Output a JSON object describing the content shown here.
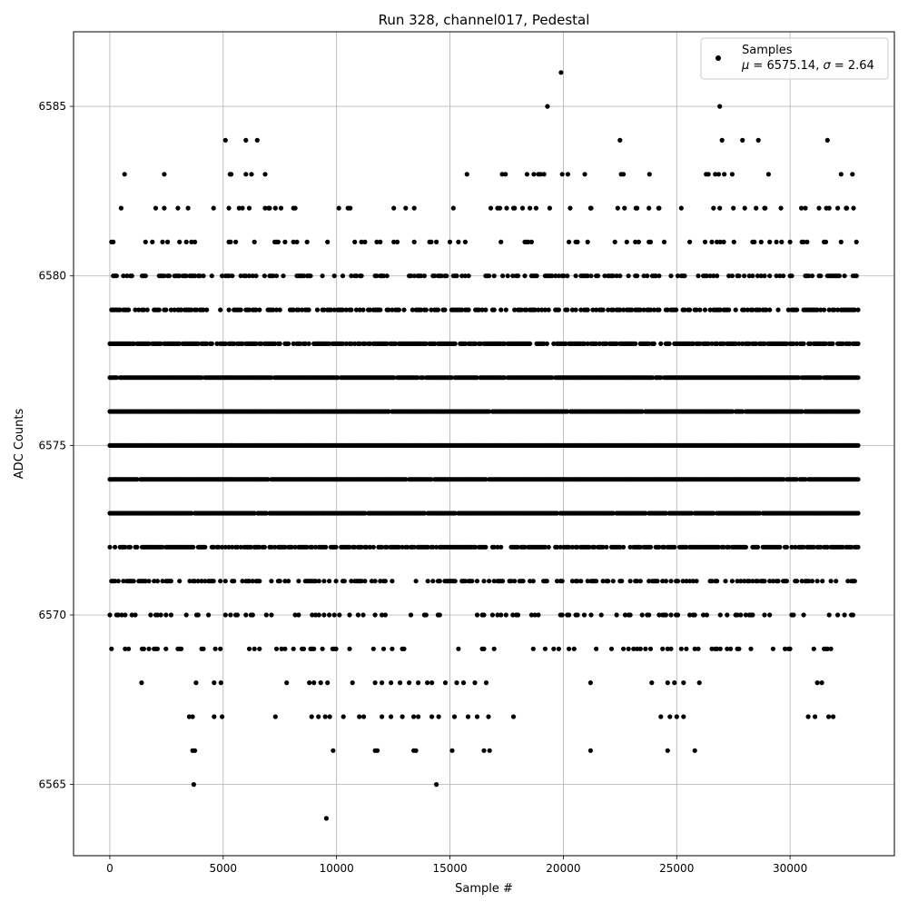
{
  "chart_data": {
    "type": "scatter",
    "title": "Run 328, channel017, Pedestal",
    "xlabel": "Sample #",
    "ylabel": "ADC Counts",
    "xlim": [
      -1600,
      34600
    ],
    "ylim": [
      6562.9,
      6587.2
    ],
    "x_ticks": [
      0,
      5000,
      10000,
      15000,
      20000,
      25000,
      30000
    ],
    "x_tick_labels": [
      "0",
      "5000",
      "10000",
      "15000",
      "20000",
      "25000",
      "30000"
    ],
    "y_ticks": [
      6565,
      6570,
      6575,
      6580,
      6585
    ],
    "y_tick_labels": [
      "6565",
      "6570",
      "6575",
      "6580",
      "6585"
    ],
    "grid": true,
    "legend": {
      "placement": "top-right",
      "entries": [
        {
          "label": "Samples",
          "stat_mu": "6575.14",
          "stat_sigma": "2.64"
        }
      ]
    },
    "marker_color": "#000000",
    "series": [
      {
        "name": "Samples",
        "x_range": [
          0,
          33000
        ],
        "level_density": {
          "6569": 0.18,
          "6570": 0.22,
          "6571": 0.45,
          "6572": 0.75,
          "6573": 0.97,
          "6574": 0.99,
          "6575": 1.0,
          "6576": 0.99,
          "6577": 0.97,
          "6578": 0.8,
          "6579": 0.55,
          "6580": 0.4,
          "6581": 0.15,
          "6582": 0.04
        },
        "outliers": [
          [
            3700,
            6565
          ],
          [
            14400,
            6565
          ],
          [
            9550,
            6564
          ],
          [
            19900,
            6586
          ],
          [
            19300,
            6585
          ],
          [
            26900,
            6585
          ],
          [
            5100,
            6584
          ],
          [
            6000,
            6584
          ],
          [
            6500,
            6584
          ],
          [
            22500,
            6584
          ],
          [
            27000,
            6584
          ],
          [
            27900,
            6584
          ],
          [
            28600,
            6584
          ],
          [
            31650,
            6584
          ],
          [
            650,
            6583
          ],
          [
            2400,
            6583
          ],
          [
            5300,
            6583
          ],
          [
            5350,
            6583
          ],
          [
            6000,
            6583
          ],
          [
            6250,
            6583
          ],
          [
            6850,
            6583
          ],
          [
            15750,
            6583
          ],
          [
            17300,
            6583
          ],
          [
            17450,
            6583
          ],
          [
            18400,
            6583
          ],
          [
            18700,
            6583
          ],
          [
            18900,
            6583
          ],
          [
            19000,
            6583
          ],
          [
            19150,
            6583
          ],
          [
            19950,
            6583
          ],
          [
            20200,
            6583
          ],
          [
            20950,
            6583
          ],
          [
            22550,
            6583
          ],
          [
            22650,
            6583
          ],
          [
            23800,
            6583
          ],
          [
            26300,
            6583
          ],
          [
            26400,
            6583
          ],
          [
            26700,
            6583
          ],
          [
            26850,
            6583
          ],
          [
            27100,
            6583
          ],
          [
            27450,
            6583
          ],
          [
            29050,
            6583
          ],
          [
            32250,
            6583
          ],
          [
            32750,
            6583
          ],
          [
            500,
            6582
          ],
          [
            2400,
            6582
          ],
          [
            3000,
            6582
          ],
          [
            5250,
            6582
          ],
          [
            5700,
            6582
          ],
          [
            6150,
            6582
          ],
          [
            6850,
            6582
          ],
          [
            7000,
            6582
          ],
          [
            7300,
            6582
          ],
          [
            7550,
            6582
          ],
          [
            8100,
            6582
          ],
          [
            10100,
            6582
          ],
          [
            10500,
            6582
          ],
          [
            10600,
            6582
          ],
          [
            15150,
            6582
          ],
          [
            16800,
            6582
          ],
          [
            17200,
            6582
          ],
          [
            17500,
            6582
          ],
          [
            17800,
            6582
          ],
          [
            18200,
            6582
          ],
          [
            18800,
            6582
          ],
          [
            19400,
            6582
          ],
          [
            20300,
            6582
          ],
          [
            21200,
            6582
          ],
          [
            22400,
            6582
          ],
          [
            22700,
            6582
          ],
          [
            23200,
            6582
          ],
          [
            24200,
            6582
          ],
          [
            26900,
            6582
          ],
          [
            27500,
            6582
          ],
          [
            28000,
            6582
          ],
          [
            28500,
            6582
          ],
          [
            28900,
            6582
          ],
          [
            29600,
            6582
          ],
          [
            30500,
            6582
          ],
          [
            31600,
            6582
          ],
          [
            32100,
            6582
          ],
          [
            32500,
            6582
          ],
          [
            32800,
            6582
          ],
          [
            1400,
            6568
          ],
          [
            3800,
            6568
          ],
          [
            4600,
            6568
          ],
          [
            4900,
            6568
          ],
          [
            7800,
            6568
          ],
          [
            8800,
            6568
          ],
          [
            9000,
            6568
          ],
          [
            9300,
            6568
          ],
          [
            9600,
            6568
          ],
          [
            10700,
            6568
          ],
          [
            11700,
            6568
          ],
          [
            12000,
            6568
          ],
          [
            12400,
            6568
          ],
          [
            12800,
            6568
          ],
          [
            13200,
            6568
          ],
          [
            13600,
            6568
          ],
          [
            14000,
            6568
          ],
          [
            14200,
            6568
          ],
          [
            14800,
            6568
          ],
          [
            15300,
            6568
          ],
          [
            15600,
            6568
          ],
          [
            16100,
            6568
          ],
          [
            16600,
            6568
          ],
          [
            21200,
            6568
          ],
          [
            23900,
            6568
          ],
          [
            24600,
            6568
          ],
          [
            24900,
            6568
          ],
          [
            25300,
            6568
          ],
          [
            26000,
            6568
          ],
          [
            31200,
            6568
          ],
          [
            31400,
            6568
          ],
          [
            3500,
            6567
          ],
          [
            3650,
            6567
          ],
          [
            4600,
            6567
          ],
          [
            4950,
            6567
          ],
          [
            7300,
            6567
          ],
          [
            8900,
            6567
          ],
          [
            9200,
            6567
          ],
          [
            9500,
            6567
          ],
          [
            9700,
            6567
          ],
          [
            10300,
            6567
          ],
          [
            11000,
            6567
          ],
          [
            11200,
            6567
          ],
          [
            12000,
            6567
          ],
          [
            12400,
            6567
          ],
          [
            12900,
            6567
          ],
          [
            13400,
            6567
          ],
          [
            13600,
            6567
          ],
          [
            14200,
            6567
          ],
          [
            14500,
            6567
          ],
          [
            15200,
            6567
          ],
          [
            15800,
            6567
          ],
          [
            16200,
            6567
          ],
          [
            16700,
            6567
          ],
          [
            17800,
            6567
          ],
          [
            24300,
            6567
          ],
          [
            24700,
            6567
          ],
          [
            25000,
            6567
          ],
          [
            25300,
            6567
          ],
          [
            30800,
            6567
          ],
          [
            31100,
            6567
          ],
          [
            31700,
            6567
          ],
          [
            31900,
            6567
          ],
          [
            3650,
            6566
          ],
          [
            3750,
            6566
          ],
          [
            9850,
            6566
          ],
          [
            11700,
            6566
          ],
          [
            11800,
            6566
          ],
          [
            13400,
            6566
          ],
          [
            13500,
            6566
          ],
          [
            15100,
            6566
          ],
          [
            16500,
            6566
          ],
          [
            16750,
            6566
          ],
          [
            21200,
            6566
          ],
          [
            24600,
            6566
          ],
          [
            25800,
            6566
          ]
        ]
      }
    ]
  }
}
